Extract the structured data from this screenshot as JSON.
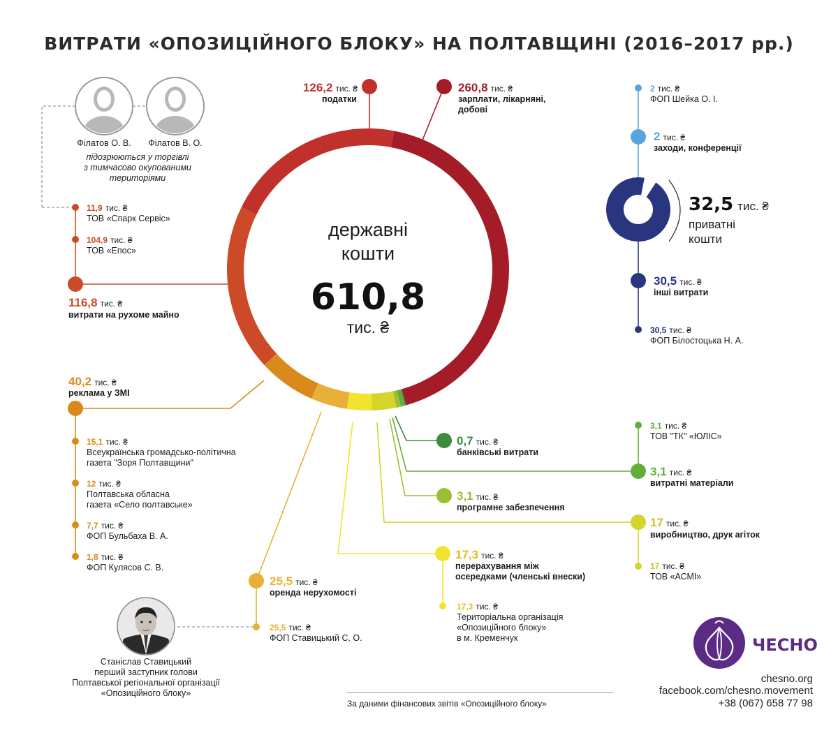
{
  "chart_data": {
    "type": "pie",
    "title": "ВИТРАТИ «ОПОЗИЦІЙНОГО БЛОКУ» НА ПОЛТАВЩИНІ (2016–2017 рр.)",
    "unit": "тис. ₴",
    "state_funds": {
      "label_line1": "державні",
      "label_line2": "кошти",
      "total": "610,8",
      "total_unit": "тис. ₴",
      "slices": [
        {
          "key": "salaries",
          "value": 260.8,
          "value_text": "260,8",
          "label": "зарплати, лікарняні, добові",
          "label_lines": [
            "зарплати, лікарняні,",
            "добові"
          ],
          "color": "#a31c28"
        },
        {
          "key": "taxes",
          "value": 126.2,
          "value_text": "126,2",
          "label": "податки",
          "color": "#c1312c"
        },
        {
          "key": "movable",
          "value": 116.8,
          "value_text": "116,8",
          "label": "витрати на рухоме майно",
          "color": "#cc4a27"
        },
        {
          "key": "ads",
          "value": 40.2,
          "value_text": "40,2",
          "label": "реклама у ЗМІ",
          "color": "#da8a1c"
        },
        {
          "key": "rent",
          "value": 25.5,
          "value_text": "25,5",
          "label": "оренда нерухомості",
          "color": "#e8b038"
        },
        {
          "key": "transfer",
          "value": 17.3,
          "value_text": "17,3",
          "label": "перерахування між осередками (членські внески)",
          "label_lines": [
            "перерахування між",
            "осередками (членські внески)"
          ],
          "color": "#f3e330"
        },
        {
          "key": "printing",
          "value": 17,
          "value_text": "17",
          "label": "виробництво, друк агіток",
          "color": "#d5d42a"
        },
        {
          "key": "software",
          "value": 3.1,
          "value_text": "3,1",
          "label": "програмне забезпечення",
          "color": "#9bbf35"
        },
        {
          "key": "materials",
          "value": 3.1,
          "value_text": "3,1",
          "label": "витратні матеріали",
          "color": "#64ad3c"
        },
        {
          "key": "bank",
          "value": 0.7,
          "value_text": "0,7",
          "label": "банківські витрати",
          "color": "#3d8b3d"
        }
      ]
    },
    "private_funds": {
      "total": "32,5",
      "total_unit": "тис. ₴",
      "label_line1": "приватні",
      "label_line2": "кошти",
      "slices": [
        {
          "key": "other",
          "value": 30.5,
          "value_text": "30,5",
          "label": "інші витрати",
          "color": "#2a3580"
        },
        {
          "key": "events",
          "value": 2,
          "value_text": "2",
          "label": "заходи, конференції",
          "color": "#5aa4de"
        }
      ]
    },
    "recipients": [
      {
        "key": "spark",
        "value_text": "11,9",
        "name": "ТОВ «Спарк Сервіс»",
        "color": "#cc4a27"
      },
      {
        "key": "epos",
        "value_text": "104,9",
        "name": "ТОВ «Епос»",
        "color": "#cc4a27"
      },
      {
        "key": "zorya",
        "value_text": "15,1",
        "name_lines": [
          "Всеукраїнська громадсько-політична",
          "газета \"Зоря Полтавщини\""
        ],
        "color": "#da8a1c"
      },
      {
        "key": "selo",
        "value_text": "12",
        "name_lines": [
          "Полтавська обласна",
          "газета «Село полтавське»"
        ],
        "color": "#da8a1c"
      },
      {
        "key": "bulbakha",
        "value_text": "7,7",
        "name": "ФОП Бульбаха В. А.",
        "color": "#da8a1c"
      },
      {
        "key": "kuliasov",
        "value_text": "1,8",
        "name": "ФОП Кулясов С. В.",
        "color": "#da8a1c"
      },
      {
        "key": "stavytskyi",
        "value_text": "25,5",
        "name": "ФОП Ставицький С. О.",
        "color": "#e8b038"
      },
      {
        "key": "teritorial",
        "value_text": "17,3",
        "name_lines": [
          "Територіальна організація",
          "«Опозиційного блоку»",
          "в м. Кременчук"
        ],
        "color": "#f3e330"
      },
      {
        "key": "asmi",
        "value_text": "17",
        "name": "ТОВ «АСМІ»",
        "color": "#d5d42a"
      },
      {
        "key": "tk",
        "value_text": "3,1",
        "name": "ТОВ \"ТК\" «ЮЛІС»",
        "color": "#64ad3c"
      },
      {
        "key": "sheika",
        "value_text": "2",
        "name": "ФОП Шейка О. І.",
        "color": "#5aa4de"
      },
      {
        "key": "bilostotska",
        "value_text": "30,5",
        "name": "ФОП Білостоцька Н. А.",
        "color": "#2a3580"
      }
    ]
  },
  "people": {
    "filatov_o": "Філатов О. В.",
    "filatov_v": "Філатов В. О.",
    "suspicion_lines": [
      "підозрюються  у торгівлі",
      "з тимчасово окупованими",
      "територіями"
    ],
    "stavytskyi_lines": [
      "Станіслав Ставицький",
      "перший заступник голови",
      "Полтавської регіональної організації",
      "«Опозиційного блоку»"
    ]
  },
  "footer": {
    "source": "За даними фінансових звітів «Опозиційного блоку»",
    "logo": "ЧЕСНО",
    "site": "chesno.org",
    "facebook": "facebook.com/chesno.movement",
    "phone": "+38 (067) 658 77 98"
  },
  "colors": {
    "connector_gray": "#aaaaaa",
    "logo_purple": "#5b2b86"
  }
}
